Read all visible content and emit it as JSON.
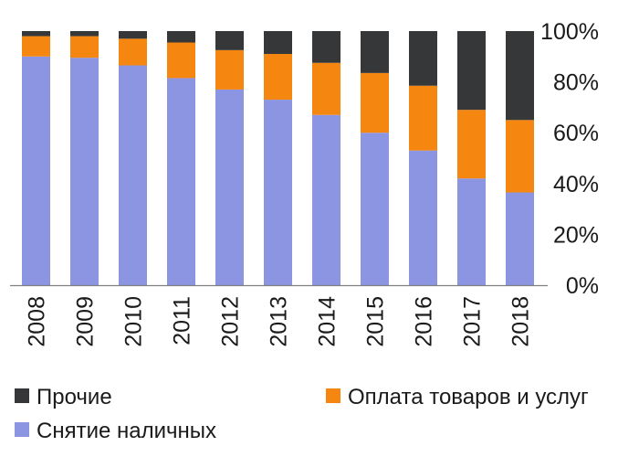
{
  "chart_data": {
    "type": "bar",
    "stacked": true,
    "categories": [
      "2008",
      "2009",
      "2010",
      "2011",
      "2012",
      "2013",
      "2014",
      "2015",
      "2016",
      "2017",
      "2018"
    ],
    "series": [
      {
        "name": "Снятие наличных",
        "color": "#8b95e2",
        "values": [
          90,
          89.5,
          86.5,
          81.5,
          77,
          73,
          67,
          60,
          53,
          42,
          36.5
        ]
      },
      {
        "name": "Оплата товаров и услуг",
        "color": "#f5860f",
        "values": [
          8,
          8.5,
          10.5,
          14,
          15.5,
          18,
          20.5,
          23.5,
          25.5,
          27,
          28.5
        ]
      },
      {
        "name": "Прочие",
        "color": "#353738",
        "values": [
          2,
          2,
          3,
          4.5,
          7.5,
          9,
          12.5,
          16.5,
          21.5,
          31,
          35
        ]
      }
    ],
    "ylim": [
      0,
      100
    ],
    "y_ticks": [
      "0%",
      "20%",
      "40%",
      "60%",
      "80%",
      "100%"
    ],
    "y_axis_side": "right",
    "grid": false,
    "x_label_orientation": "vertical",
    "legend_placement": "bottom",
    "title": "",
    "xlabel": "",
    "ylabel": ""
  }
}
